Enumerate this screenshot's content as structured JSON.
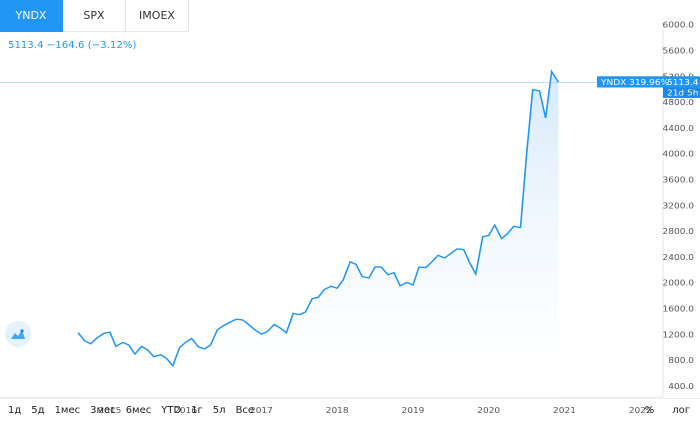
{
  "tabs": [
    {
      "label": "YNDX",
      "active": true
    },
    {
      "label": "SPX",
      "active": false
    },
    {
      "label": "IMOEX",
      "active": false
    }
  ],
  "stats": {
    "text": "5113.4  −164.6 (−3.12%)"
  },
  "price_label": {
    "ticker": "YNDX 319.96%",
    "price": "5113.4",
    "countdown": "21d 5h"
  },
  "ranges": [
    "1д",
    "5д",
    "1мес",
    "3мес",
    "6мес",
    "YTD",
    "1г",
    "5л",
    "Все"
  ],
  "options": [
    "%",
    "лог"
  ],
  "colors": {
    "line": "#2196f3",
    "fill_top": "#cfe6fb",
    "fill_bottom": "#ffffff",
    "tab_active": "#2196f3",
    "axis_text": "#555555"
  },
  "chart_data": {
    "type": "area",
    "x": [
      2014.58,
      2014.67,
      2014.75,
      2014.83,
      2014.92,
      2015.0,
      2015.08,
      2015.17,
      2015.25,
      2015.33,
      2015.42,
      2015.5,
      2015.58,
      2015.67,
      2015.75,
      2015.83,
      2015.92,
      2016.0,
      2016.08,
      2016.17,
      2016.25,
      2016.33,
      2016.42,
      2016.5,
      2016.58,
      2016.67,
      2016.75,
      2016.83,
      2016.92,
      2017.0,
      2017.08,
      2017.17,
      2017.25,
      2017.33,
      2017.42,
      2017.5,
      2017.58,
      2017.67,
      2017.75,
      2017.83,
      2017.92,
      2018.0,
      2018.08,
      2018.17,
      2018.25,
      2018.33,
      2018.42,
      2018.5,
      2018.58,
      2018.67,
      2018.75,
      2018.83,
      2018.92,
      2019.0,
      2019.08,
      2019.17,
      2019.25,
      2019.33,
      2019.42,
      2019.5,
      2019.58,
      2019.67,
      2019.75,
      2019.83,
      2019.92,
      2020.0,
      2020.08,
      2020.17,
      2020.25,
      2020.33,
      2020.42,
      2020.5,
      2020.58,
      2020.67,
      2020.75,
      2020.83,
      2020.92
    ],
    "values": [
      1230,
      1100,
      1060,
      1150,
      1220,
      1240,
      1020,
      1080,
      1040,
      900,
      1020,
      960,
      860,
      890,
      830,
      720,
      1000,
      1080,
      1140,
      1010,
      980,
      1040,
      1280,
      1340,
      1390,
      1440,
      1430,
      1360,
      1270,
      1210,
      1250,
      1360,
      1300,
      1230,
      1530,
      1510,
      1550,
      1760,
      1780,
      1900,
      1950,
      1920,
      2050,
      2330,
      2290,
      2100,
      2080,
      2250,
      2250,
      2130,
      2160,
      1960,
      2010,
      1970,
      2250,
      2240,
      2330,
      2430,
      2390,
      2460,
      2530,
      2520,
      2310,
      2140,
      2720,
      2740,
      2900,
      2690,
      2770,
      2880,
      2860,
      4000,
      5000,
      4980,
      4560,
      5280,
      5113.4
    ],
    "xticks": [
      "2015",
      "2016",
      "2017",
      "2018",
      "2019",
      "2020",
      "2021",
      "2022"
    ],
    "xtick_values": [
      2015,
      2016,
      2017,
      2018,
      2019,
      2020,
      2021,
      2022
    ],
    "yticks": [
      400,
      800,
      1200,
      1600,
      2000,
      2400,
      2800,
      3200,
      3600,
      4000,
      4400,
      4800,
      5200,
      5600,
      6000
    ],
    "ytick_labels": [
      "400.0",
      "800.0",
      "1200.0",
      "1600.0",
      "2000.0",
      "2400.0",
      "2800.0",
      "3200.0",
      "3600.0",
      "4000.0",
      "4400.0",
      "4800.0",
      "5200.0",
      "5600.0",
      "6000.0"
    ],
    "xlim": [
      2013.55,
      2022.3
    ],
    "ylim": [
      230,
      6040
    ],
    "last_value": 5113.4,
    "grid": false
  }
}
